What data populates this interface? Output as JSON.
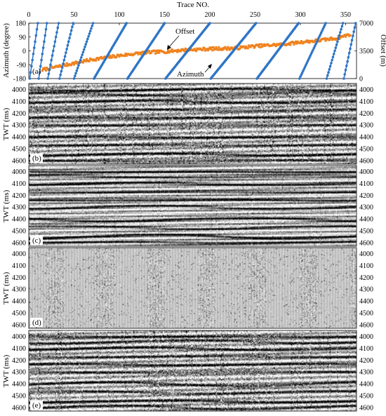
{
  "chart_data": [
    {
      "type": "scatter",
      "panel_label": "(a)",
      "xlabel": "Trace NO.",
      "ylabel_left": "Azimuth (degree)",
      "ylabel_right": "Offset (m)",
      "x_ticks": [
        "0",
        "50",
        "100",
        "150",
        "200",
        "250",
        "300",
        "350"
      ],
      "y_left_ticks": [
        "180",
        "90",
        "0",
        "-90",
        "-180"
      ],
      "y_right_ticks": [
        "7000",
        "3500",
        "0"
      ],
      "xlim": [
        0,
        362
      ],
      "ylim_left": [
        -180,
        180
      ],
      "ylim_right": [
        0,
        7000
      ],
      "annotations": [
        "Offset",
        "Azimuth"
      ],
      "series": [
        {
          "label": "Azimuth",
          "color": "#2e75c6",
          "marker": "circle",
          "axis": "left",
          "segments": [
            {
              "x": [
                1,
                10
              ],
              "y": [
                -180,
                180
              ]
            },
            {
              "x": [
                11,
                20
              ],
              "y": [
                -180,
                180
              ]
            },
            {
              "x": [
                21,
                33
              ],
              "y": [
                -180,
                180
              ]
            },
            {
              "x": [
                34,
                49
              ],
              "y": [
                -180,
                180
              ]
            },
            {
              "x": [
                50,
                71
              ],
              "y": [
                -180,
                180
              ]
            },
            {
              "x": [
                72,
                108
              ],
              "y": [
                -180,
                180
              ]
            },
            {
              "x": [
                109,
                150
              ],
              "y": [
                -180,
                180
              ]
            },
            {
              "x": [
                151,
                200
              ],
              "y": [
                -180,
                180
              ]
            },
            {
              "x": [
                201,
                251
              ],
              "y": [
                -180,
                180
              ]
            },
            {
              "x": [
                252,
                298
              ],
              "y": [
                -180,
                180
              ]
            },
            {
              "x": [
                299,
                328
              ],
              "y": [
                -180,
                180
              ]
            },
            {
              "x": [
                329,
                347
              ],
              "y": [
                -180,
                180
              ]
            },
            {
              "x": [
                348,
                361
              ],
              "y": [
                -180,
                180
              ]
            }
          ]
        },
        {
          "label": "Offset",
          "color": "#f0821e",
          "marker": "square",
          "axis": "right",
          "x": [
            15,
            40,
            70,
            100,
            130,
            150,
            170,
            200,
            230,
            250,
            280,
            300,
            320,
            340,
            355
          ],
          "y": [
            1100,
            1700,
            2400,
            2900,
            3300,
            3400,
            3600,
            3750,
            3850,
            4100,
            4300,
            4600,
            4800,
            5100,
            5600
          ]
        }
      ]
    },
    {
      "type": "heatmap",
      "panel_label": "(b)",
      "ylabel": "TWT (ms)",
      "y_ticks": [
        "4000",
        "4100",
        "4200",
        "4300",
        "4400",
        "4500",
        "4600"
      ],
      "ylim": [
        4630,
        3950
      ],
      "events_ms": [
        3998,
        4040,
        4102,
        4168,
        4236,
        4300,
        4402,
        4470,
        4548,
        4600
      ],
      "noise": 0.9,
      "mode": "noisy"
    },
    {
      "type": "heatmap",
      "panel_label": "(c)",
      "ylabel": "TWT (ms)",
      "y_ticks": [
        "4000",
        "4100",
        "4200",
        "4300",
        "4400",
        "4500",
        "4600"
      ],
      "ylim": [
        4630,
        3950
      ],
      "events_ms": [
        3998,
        4040,
        4102,
        4168,
        4236,
        4300,
        4402,
        4470,
        4548,
        4600
      ],
      "noise": 0.45,
      "mode": "clean"
    },
    {
      "type": "heatmap",
      "panel_label": "(d)",
      "ylabel": "TWT (ms)",
      "y_ticks": [
        "4000",
        "4100",
        "4200",
        "4300",
        "4400",
        "4500",
        "4600"
      ],
      "ylim": [
        4630,
        3950
      ],
      "noise": 0.6,
      "mode": "residual"
    },
    {
      "type": "heatmap",
      "panel_label": "(e)",
      "ylabel": "TWT (ms)",
      "y_ticks": [
        "4000",
        "4100",
        "4200",
        "4300",
        "4400",
        "4500",
        "4600"
      ],
      "ylim": [
        4630,
        3950
      ],
      "events_ms": [
        3998,
        4040,
        4102,
        4168,
        4236,
        4300,
        4402,
        4470,
        4548,
        4600
      ],
      "noise": 0.8,
      "mode": "noisy"
    }
  ]
}
